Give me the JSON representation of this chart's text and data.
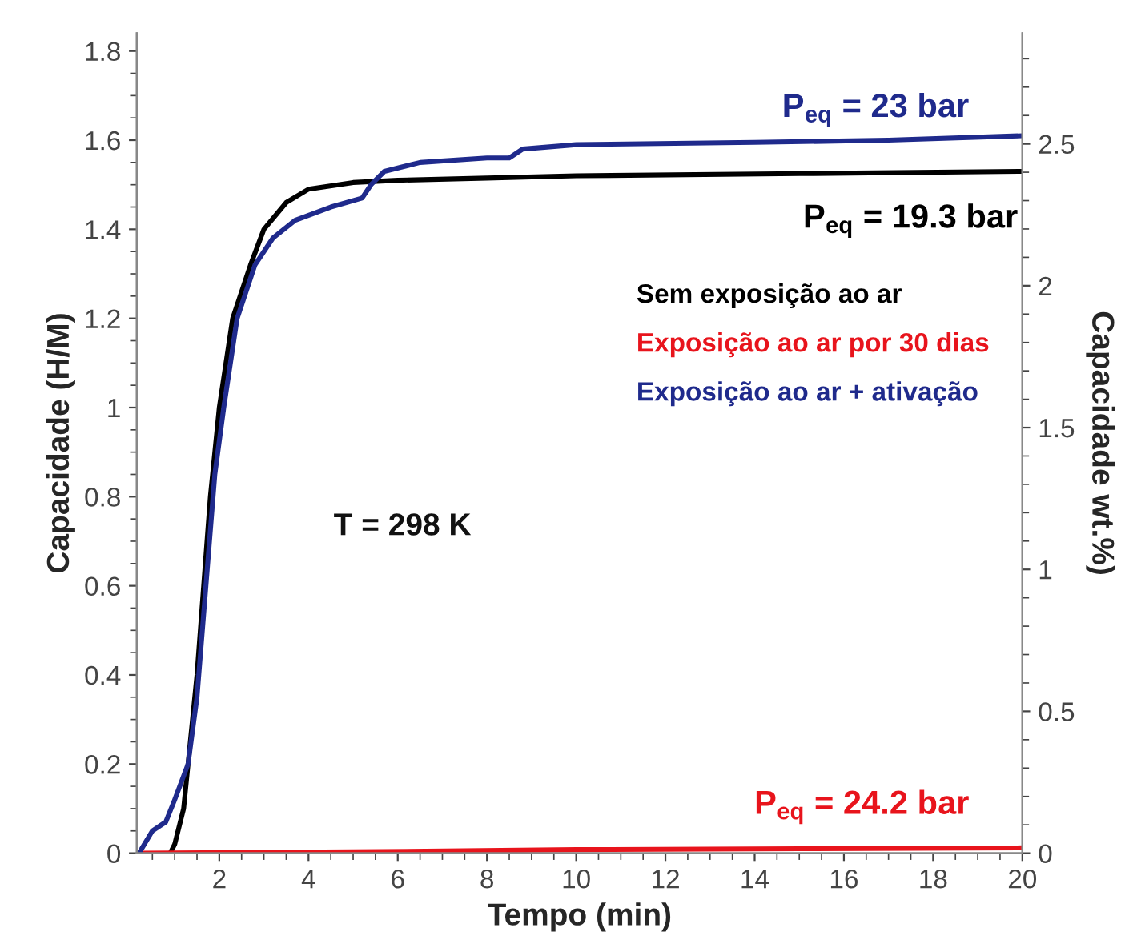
{
  "chart_data": {
    "type": "line",
    "xlabel": "Tempo (min)",
    "ylabel": "Capacidade (H/M)",
    "y2label": "Capacidade wt.%)",
    "xlim": [
      0.15,
      20
    ],
    "xticks": [
      2,
      4,
      6,
      8,
      10,
      12,
      14,
      16,
      18,
      20
    ],
    "ylim": [
      0,
      1.84
    ],
    "yticks": [
      0,
      0.2,
      0.4,
      0.6,
      0.8,
      1,
      1.2,
      1.4,
      1.6,
      1.8
    ],
    "y2lim": [
      0,
      2.89
    ],
    "y2ticks": [
      0,
      0.5,
      1,
      1.5,
      2,
      2.5
    ],
    "legend": "right",
    "grid": false,
    "marker": "none",
    "line_style": "solid",
    "series": [
      {
        "name": "Sem exposição ao ar",
        "color": "#000000",
        "x": [
          0.9,
          1.0,
          1.2,
          1.5,
          1.8,
          2.0,
          2.3,
          2.7,
          3.0,
          3.5,
          4,
          5,
          6,
          8,
          10,
          15,
          20
        ],
        "values": [
          0,
          0.02,
          0.1,
          0.4,
          0.8,
          1.0,
          1.2,
          1.32,
          1.4,
          1.46,
          1.49,
          1.505,
          1.51,
          1.515,
          1.52,
          1.525,
          1.53
        ]
      },
      {
        "name": "Exposição ao ar por 30 dias",
        "color": "#e8141c",
        "x": [
          0.2,
          5,
          10,
          15,
          20
        ],
        "values": [
          0,
          0.003,
          0.008,
          0.01,
          0.012
        ]
      },
      {
        "name": "Exposição ao ar + ativação",
        "color": "#1f2a8c",
        "x": [
          0.2,
          0.5,
          0.8,
          1.0,
          1.3,
          1.5,
          1.7,
          1.9,
          2.1,
          2.4,
          2.8,
          3.2,
          3.7,
          4.5,
          5.2,
          5.4,
          5.7,
          6.5,
          8,
          8.5,
          8.8,
          10,
          14,
          17,
          20
        ],
        "values": [
          0,
          0.05,
          0.07,
          0.12,
          0.2,
          0.35,
          0.6,
          0.85,
          1.0,
          1.2,
          1.32,
          1.38,
          1.42,
          1.45,
          1.47,
          1.5,
          1.53,
          1.55,
          1.56,
          1.56,
          1.58,
          1.59,
          1.595,
          1.6,
          1.61
        ]
      }
    ],
    "annotations": [
      "P$_{eq}$ = 23 bar",
      "P$_{eq}$ = 19.3 bar",
      "P$_{eq}$ = 24.2 bar",
      "T = 298 K"
    ]
  }
}
